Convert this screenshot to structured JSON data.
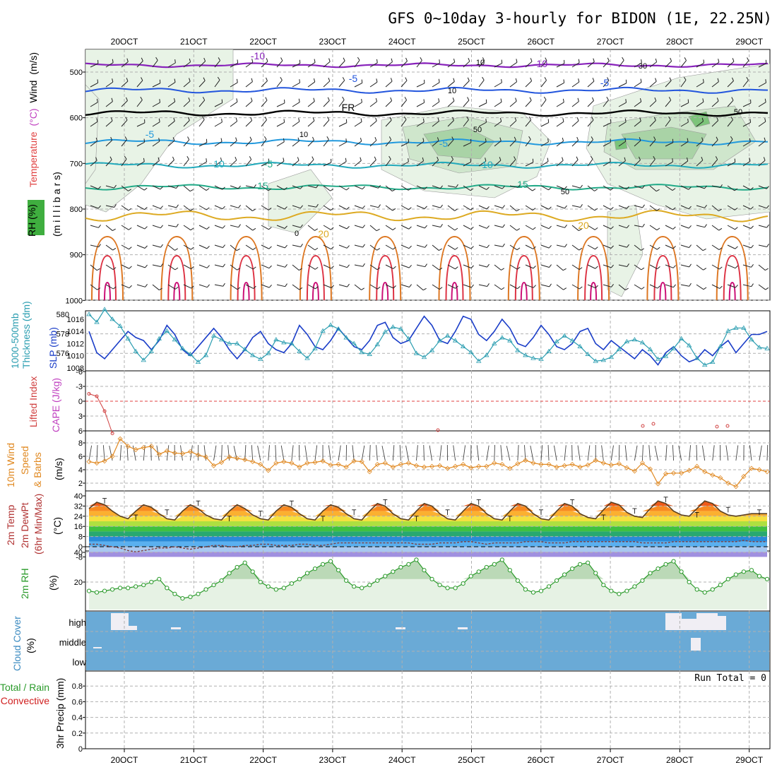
{
  "title": "GFS 0~10day 3-hourly for BIDON (1E, 22.25N)",
  "x_axis": {
    "labels": [
      "20OCT",
      "21OCT",
      "22OCT",
      "23OCT",
      "24OCT",
      "25OCT",
      "26OCT",
      "27OCT",
      "28OCT",
      "29OCT"
    ]
  },
  "colors": {
    "grid": "#b0b0b0",
    "rh_shade": [
      "#e8f3e6",
      "#cfe6cc",
      "#a9d3a6",
      "#7cc47a"
    ],
    "isotherm_m10": "#8822bb",
    "isotherm_m5": "#2255dd",
    "isotherm_fr": "#000000",
    "isotherm_5": "#2299dd",
    "isotherm_10": "#22aabb",
    "isotherm_15": "#22aa88",
    "isotherm_20": "#ddaa22",
    "isotherm_25": "#dd7722",
    "isotherm_30": "#dd3344",
    "isotherm_35": "#cc1177",
    "thickness": "#2a9db0",
    "slp": "#1a3dc8",
    "lifted_index": "#d04040",
    "wind_speed": "#e08820",
    "rh2m": "#2a9a2a",
    "cloud_bg": "#6aaad6",
    "cloud_gap": "#f0eef4"
  },
  "panels": {
    "profile": {
      "ylabel_parts": [
        "RH (%)",
        "Temperature",
        "(°C)",
        "Wind",
        "(m/s)"
      ],
      "ylabel_units": "(m i l l i b a r s)",
      "levels": [
        "500",
        "600",
        "700",
        "800",
        "900",
        "1000"
      ],
      "isotherm_labels": [
        {
          "text": "-10"
        },
        {
          "text": "-10"
        },
        {
          "text": "-5"
        },
        {
          "text": "-5"
        },
        {
          "text": "FR"
        },
        {
          "text": "-5"
        },
        {
          "text": "-5"
        },
        {
          "text": "-5"
        },
        {
          "text": "10"
        },
        {
          "text": "10"
        },
        {
          "text": "15"
        },
        {
          "text": "15"
        },
        {
          "text": "20"
        },
        {
          "text": "20"
        }
      ],
      "rh_labels": [
        {
          "text": "10"
        },
        {
          "text": "10"
        },
        {
          "text": "10"
        },
        {
          "text": "30"
        },
        {
          "text": "50"
        },
        {
          "text": "50"
        },
        {
          "text": "50"
        },
        {
          "text": "0"
        }
      ]
    },
    "thickness_slp": {
      "ylabel_left": "1000-500mb",
      "ylabel_left2": "Thickness (dm)",
      "ylabel_right": "SLP (mb)",
      "ticks_thickness": [
        "580",
        "578",
        "576"
      ],
      "ticks_slp": [
        "1016",
        "1014",
        "1012",
        "1010",
        "1008"
      ]
    },
    "stability": {
      "ylabel_left": "Lifted Index",
      "ylabel_right": "CAPE (J/kg)",
      "ticks": [
        "-6",
        "-3",
        "0",
        "3",
        "6"
      ]
    },
    "wind10m": {
      "ylabel_parts": [
        "10m Wind",
        "Speed",
        "& Barbs",
        "(m/s)"
      ],
      "ticks": [
        "8",
        "6",
        "4",
        "2"
      ]
    },
    "temp2m": {
      "ylabel_parts": [
        "2m Temp",
        "2m DewPt",
        "(6hr Min/Max)",
        "(°C)"
      ],
      "ticks": [
        "40",
        "32",
        "24",
        "16",
        "8",
        "0",
        "-8"
      ]
    },
    "rh2m": {
      "ylabel_parts": [
        "2m RH",
        "(%)"
      ],
      "ticks": [
        "40",
        "20"
      ]
    },
    "cloud": {
      "ylabel_parts": [
        "Cloud Cover",
        "(%)"
      ],
      "layers": [
        "high",
        "middle",
        "low"
      ]
    },
    "precip": {
      "ylabel_parts": [
        "Total / Rain",
        "Convective",
        "3hr Precip (mm)"
      ],
      "run_total": "Run Total = 0",
      "ticks": [
        "0.8",
        "0.6",
        "0.4",
        "0.2",
        "0"
      ]
    }
  },
  "chart_data": [
    {
      "type": "line",
      "title": "1000-500mb Thickness (dm) / SLP (mb)",
      "series": [
        {
          "name": "Thickness (dm)",
          "values": [
            580.0,
            579.2,
            580.5,
            579.5,
            578.8,
            577.5,
            576.2,
            575.3,
            576.2,
            577.5,
            578.3,
            577.4,
            576.5,
            575.9,
            575.1,
            575.8,
            577.8,
            577.4,
            577.0,
            577.0,
            576.4,
            575.8,
            575.4,
            576.0,
            577.4,
            577.1,
            577.0,
            576.2,
            575.5,
            576.5,
            578.3,
            578.9,
            578.5,
            577.6,
            577.0,
            576.1,
            575.9,
            576.9,
            578.2,
            578.7,
            578.5,
            577.5,
            576.0,
            575.6,
            576.3,
            577.3,
            577.8,
            577.3,
            576.7,
            576.1,
            575.2,
            575.8,
            577.0,
            577.6,
            577.3,
            576.3,
            575.8,
            575.5,
            575.4,
            576.2,
            577.2,
            577.8,
            577.3,
            576.7,
            575.9,
            575.2,
            575.3,
            575.6,
            576.4,
            577.2,
            577.4,
            577.1,
            576.4,
            575.4,
            575.7,
            576.5,
            577.5,
            576.8,
            575.5,
            574.8,
            575.1,
            576.7,
            578.3,
            578.6,
            578.6,
            577.4,
            576.6,
            576.5
          ]
        },
        {
          "name": "SLP (mb)",
          "values": [
            1014.0,
            1010.5,
            1009.5,
            1011.0,
            1012.5,
            1014.0,
            1013.0,
            1012.5,
            1011.0,
            1012.5,
            1015.0,
            1013.5,
            1011.0,
            1010.0,
            1011.5,
            1013.0,
            1014.5,
            1013.0,
            1011.0,
            1009.5,
            1011.0,
            1013.0,
            1014.0,
            1012.0,
            1011.0,
            1010.5,
            1012.0,
            1015.0,
            1013.5,
            1011.5,
            1011.0,
            1012.5,
            1014.5,
            1013.0,
            1011.5,
            1011.0,
            1012.5,
            1015.0,
            1015.5,
            1013.0,
            1012.0,
            1012.5,
            1014.5,
            1016.5,
            1015.0,
            1012.5,
            1012.0,
            1014.0,
            1016.5,
            1016.0,
            1013.5,
            1012.5,
            1014.0,
            1016.0,
            1014.5,
            1012.0,
            1011.5,
            1013.0,
            1015.0,
            1013.5,
            1011.5,
            1011.0,
            1012.0,
            1014.0,
            1014.5,
            1012.0,
            1011.0,
            1012.5,
            1011.5,
            1010.5,
            1009.5,
            1011.0,
            1010.0,
            1008.5,
            1010.5,
            1011.5,
            1010.0,
            1009.0,
            1009.5,
            1011.0,
            1010.0,
            1011.5,
            1012.5,
            1010.5,
            1012.0,
            1013.5,
            1013.5,
            1014.0
          ]
        }
      ]
    },
    {
      "type": "line",
      "title": "Lifted Index",
      "ylim": [
        6,
        -6
      ],
      "series": [
        {
          "name": "Lifted Index",
          "values": [
            -1.5,
            -1.0,
            2.0,
            6.5,
            null,
            null,
            null,
            null,
            null,
            null,
            null,
            null,
            null,
            null,
            null,
            null,
            null,
            null,
            null,
            null,
            null,
            null,
            null,
            null,
            null,
            null,
            null,
            null,
            null,
            null,
            null,
            null,
            null,
            null,
            null,
            null,
            null,
            null,
            null,
            null,
            null,
            null,
            null,
            null,
            null,
            null,
            null,
            null,
            null,
            null,
            null,
            null,
            null,
            null,
            null,
            null,
            null,
            null,
            null,
            null,
            null,
            null,
            null,
            null,
            null,
            null,
            null,
            null,
            null,
            null,
            null,
            null,
            null,
            null,
            null,
            null,
            null,
            null,
            null,
            null,
            null,
            null,
            null,
            null,
            null,
            null,
            null,
            null
          ]
        }
      ]
    },
    {
      "type": "line",
      "title": "10m Wind Speed (m/s)",
      "series": [
        {
          "name": "10m Wind Speed",
          "values": [
            5.2,
            5.0,
            5.3,
            6.0,
            8.6,
            7.5,
            7.0,
            7.3,
            7.5,
            6.3,
            6.8,
            6.5,
            6.4,
            6.7,
            6.2,
            5.9,
            4.6,
            5.1,
            5.9,
            5.7,
            5.5,
            5.2,
            4.8,
            3.9,
            5.0,
            5.2,
            5.0,
            4.4,
            5.0,
            5.1,
            5.3,
            4.7,
            4.8,
            4.4,
            5.3,
            5.2,
            3.7,
            4.8,
            5.0,
            4.4,
            4.8,
            5.0,
            4.6,
            4.4,
            4.5,
            4.6,
            4.2,
            4.5,
            4.8,
            4.3,
            4.5,
            4.5,
            5.0,
            4.8,
            4.2,
            4.9,
            5.4,
            5.0,
            4.8,
            4.8,
            4.4,
            4.6,
            4.8,
            4.4,
            4.7,
            5.4,
            5.0,
            4.7,
            4.9,
            4.3,
            3.8,
            5.0,
            4.1,
            1.9,
            3.4,
            3.5,
            3.5,
            3.9,
            4.5,
            3.7,
            3.2,
            2.8,
            2.0,
            1.5,
            3.0,
            4.2,
            4.0,
            3.7
          ]
        }
      ]
    },
    {
      "type": "line",
      "title": "2m Temp (°C)",
      "series": [
        {
          "name": "2m Temp",
          "values": [
            30,
            35,
            33,
            28,
            24,
            22,
            28,
            33,
            31,
            26,
            22,
            21,
            28,
            33,
            30,
            25,
            22,
            21,
            28,
            33,
            30,
            25,
            22,
            21,
            28,
            33,
            31,
            26,
            22,
            21,
            28,
            33,
            31,
            26,
            22,
            21,
            28,
            34,
            32,
            26,
            22,
            21,
            28,
            34,
            32,
            26,
            22,
            21,
            28,
            34,
            32,
            26,
            22,
            21,
            28,
            34,
            32,
            26,
            22,
            21,
            28,
            34,
            32,
            26,
            23,
            22,
            29,
            35,
            33,
            27,
            24,
            23,
            30,
            36,
            34,
            28,
            25,
            24,
            30,
            36,
            34,
            28,
            25,
            24,
            25,
            26,
            26,
            26
          ]
        },
        {
          "name": "2m DewPt",
          "values": [
            2,
            2,
            1,
            0,
            -1,
            -3,
            -4,
            -3,
            -2,
            -1,
            -1,
            0,
            -1,
            -2,
            -1,
            0,
            1,
            1,
            0,
            0,
            1,
            1,
            2,
            2,
            1,
            1,
            1,
            2,
            2,
            1,
            1,
            2,
            3,
            3,
            3,
            3,
            3,
            3,
            3,
            3,
            3,
            3,
            2,
            2,
            2,
            3,
            3,
            3,
            4,
            4,
            3,
            2,
            3,
            3,
            3,
            3,
            4,
            4,
            4,
            3,
            3,
            3,
            4,
            4,
            4,
            4,
            4,
            4,
            4,
            4,
            4,
            3,
            3,
            3,
            3,
            4,
            4,
            4,
            4,
            4,
            4,
            4,
            4,
            4,
            5,
            4,
            4,
            4
          ]
        }
      ]
    },
    {
      "type": "area",
      "title": "2m RH (%)",
      "series": [
        {
          "name": "2m RH",
          "values": [
            14,
            13,
            14,
            15,
            16,
            16,
            17,
            18,
            20,
            22,
            16,
            12,
            9,
            10,
            12,
            15,
            18,
            21,
            26,
            30,
            33,
            27,
            20,
            17,
            15,
            16,
            19,
            22,
            26,
            29,
            32,
            34,
            28,
            21,
            17,
            16,
            18,
            21,
            24,
            27,
            30,
            32,
            35,
            28,
            22,
            18,
            16,
            16,
            19,
            24,
            27,
            30,
            32,
            35,
            28,
            21,
            15,
            13,
            14,
            17,
            21,
            25,
            29,
            32,
            33,
            26,
            18,
            14,
            12,
            14,
            17,
            21,
            26,
            29,
            32,
            34,
            27,
            20,
            15,
            13,
            15,
            18,
            22,
            25,
            27,
            28,
            24,
            22
          ]
        }
      ]
    },
    {
      "type": "heatmap",
      "title": "Cloud Cover (%)",
      "categories": [
        "high",
        "middle",
        "low"
      ]
    },
    {
      "type": "bar",
      "title": "3hr Precip (mm)",
      "ylim": [
        0,
        1
      ],
      "series": [
        {
          "name": "Total / Rain",
          "values": []
        },
        {
          "name": "Convective",
          "values": []
        }
      ]
    }
  ]
}
